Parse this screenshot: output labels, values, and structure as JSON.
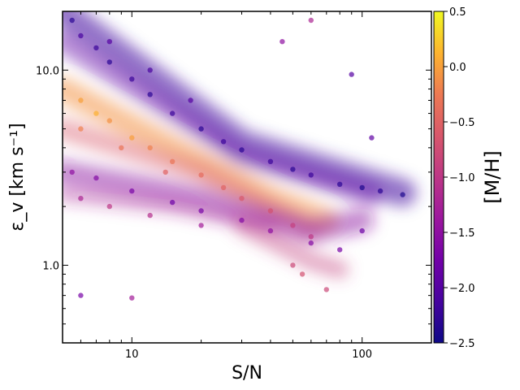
{
  "chart_data": {
    "type": "scatter",
    "title": "",
    "xlabel": "S/N",
    "ylabel": "ε_v [km s⁻¹]",
    "xscale": "log",
    "yscale": "log",
    "xlim": [
      5,
      200
    ],
    "ylim": [
      0.4,
      20
    ],
    "x_ticks": [
      {
        "value": 10,
        "label": "10"
      },
      {
        "value": 100,
        "label": "100"
      }
    ],
    "y_ticks": [
      {
        "value": 1,
        "label": "1.0"
      },
      {
        "value": 10,
        "label": "10.0"
      }
    ],
    "grid": false,
    "colorbar": {
      "label": "[M/H]",
      "range": [
        -2.5,
        0.5
      ],
      "colormap": "plasma",
      "ticks": [
        {
          "value": 0.5,
          "label": "0.5"
        },
        {
          "value": 0.0,
          "label": "0.0"
        },
        {
          "value": -0.5,
          "label": "−0.5"
        },
        {
          "value": -1.0,
          "label": "−1.0"
        },
        {
          "value": -1.5,
          "label": "−1.5"
        },
        {
          "value": -2.0,
          "label": "−2.0"
        },
        {
          "value": -2.5,
          "label": "−2.5"
        }
      ]
    },
    "series": [
      {
        "points": [
          [
            5.5,
            18.0,
            -2.3
          ],
          [
            6.0,
            15.0,
            -2.1
          ],
          [
            7.0,
            13.0,
            -2.2
          ],
          [
            8.0,
            11.0,
            -2.3
          ],
          [
            10.0,
            9.0,
            -2.2
          ],
          [
            12.0,
            7.5,
            -2.3
          ],
          [
            15.0,
            6.0,
            -2.2
          ],
          [
            20.0,
            5.0,
            -2.3
          ],
          [
            25.0,
            4.3,
            -2.2
          ],
          [
            30.0,
            3.9,
            -2.3
          ],
          [
            40.0,
            3.4,
            -2.2
          ],
          [
            50.0,
            3.1,
            -2.3
          ],
          [
            60.0,
            2.9,
            -2.2
          ],
          [
            80.0,
            2.6,
            -2.3
          ],
          [
            100.0,
            2.5,
            -2.4
          ],
          [
            120.0,
            2.4,
            -2.3
          ],
          [
            150.0,
            2.3,
            -2.4
          ],
          [
            8.0,
            14.0,
            -2.0
          ],
          [
            12.0,
            10.0,
            -2.1
          ],
          [
            18.0,
            7.0,
            -2.0
          ],
          [
            6.0,
            7.0,
            0.0
          ],
          [
            7.0,
            6.0,
            0.1
          ],
          [
            8.0,
            5.5,
            -0.1
          ],
          [
            10.0,
            4.5,
            0.0
          ],
          [
            12.0,
            4.0,
            -0.2
          ],
          [
            15.0,
            3.4,
            -0.3
          ],
          [
            20.0,
            2.9,
            -0.4
          ],
          [
            25.0,
            2.5,
            -0.5
          ],
          [
            30.0,
            2.2,
            -0.6
          ],
          [
            40.0,
            1.9,
            -0.7
          ],
          [
            50.0,
            1.6,
            -0.9
          ],
          [
            60.0,
            1.4,
            -1.0
          ],
          [
            6.0,
            5.0,
            -0.2
          ],
          [
            9.0,
            4.0,
            -0.3
          ],
          [
            14.0,
            3.0,
            -0.5
          ],
          [
            5.5,
            3.0,
            -1.5
          ],
          [
            7.0,
            2.8,
            -1.6
          ],
          [
            10.0,
            2.4,
            -1.7
          ],
          [
            15.0,
            2.1,
            -1.8
          ],
          [
            20.0,
            1.9,
            -1.7
          ],
          [
            30.0,
            1.7,
            -1.6
          ],
          [
            40.0,
            1.5,
            -1.5
          ],
          [
            60.0,
            1.3,
            -1.6
          ],
          [
            80.0,
            1.2,
            -1.7
          ],
          [
            100.0,
            1.5,
            -1.8
          ],
          [
            6.0,
            2.2,
            -1.2
          ],
          [
            8.0,
            2.0,
            -1.0
          ],
          [
            12.0,
            1.8,
            -1.1
          ],
          [
            20.0,
            1.6,
            -1.3
          ],
          [
            50.0,
            1.0,
            -0.8
          ],
          [
            55.0,
            0.9,
            -0.7
          ],
          [
            70.0,
            0.75,
            -0.8
          ],
          [
            6.0,
            0.7,
            -1.7
          ],
          [
            10.0,
            0.68,
            -1.3
          ],
          [
            90.0,
            9.5,
            -2.0
          ],
          [
            110.0,
            4.5,
            -1.9
          ],
          [
            60.0,
            18.0,
            -1.2
          ],
          [
            45.0,
            14.0,
            -1.5
          ]
        ]
      }
    ]
  }
}
